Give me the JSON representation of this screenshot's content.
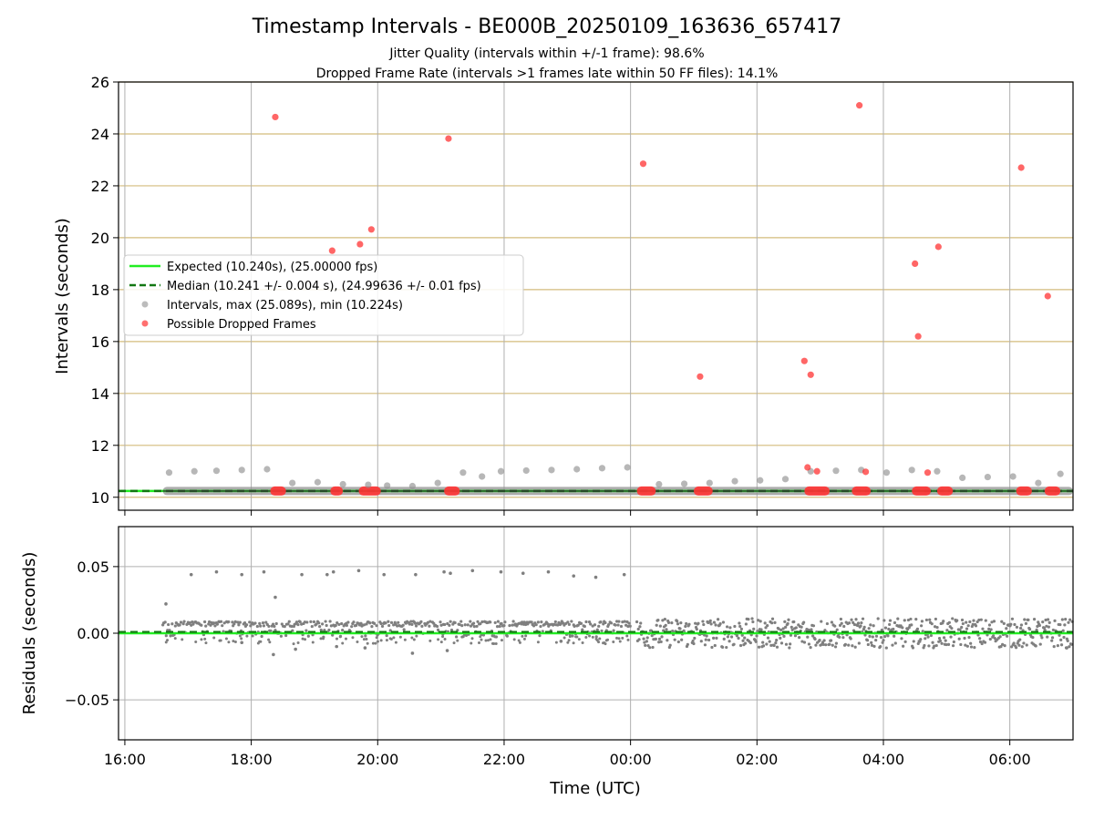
{
  "chart_data": [
    {
      "type": "scatter",
      "title": "Timestamp Intervals - BE000B_20250109_163636_657417",
      "subtitle_lines": [
        "Jitter Quality (intervals within +/-1 frame): 98.6%",
        "Dropped Frame Rate (intervals >1 frames late within 50 FF files): 14.1%"
      ],
      "ylabel": "Intervals (seconds)",
      "xlim_hours": [
        15.9,
        31.0
      ],
      "ylim": [
        9.5,
        26
      ],
      "y_ticks": [
        10,
        12,
        14,
        16,
        18,
        20,
        22,
        24,
        26
      ],
      "y_grid_color": "#d4bc7c",
      "grid": true,
      "legend_placement": "center-left",
      "expected_interval": 10.24,
      "median_interval": 10.241,
      "series": [
        {
          "name": "Expected (10.240s), (25.00000 fps)",
          "style": "solid-line",
          "color": "#22ee22",
          "y": 10.24
        },
        {
          "name": "Median (10.241 +/- 0.004 s), (24.99636 +/- 0.01 fps)",
          "style": "dashed-line",
          "color": "#117711",
          "y": 10.241
        },
        {
          "name": "Intervals, max (25.089s), min (10.224s)",
          "style": "markers",
          "color": "#909090",
          "x_hours": [
            16.7,
            17.1,
            17.45,
            17.85,
            18.25,
            18.65,
            19.05,
            19.45,
            19.85,
            20.15,
            20.55,
            20.95,
            21.35,
            21.65,
            21.95,
            22.35,
            22.75,
            23.15,
            23.55,
            23.95,
            24.45,
            24.85,
            25.25,
            25.65,
            26.05,
            26.45,
            26.85,
            27.25,
            27.65,
            28.05,
            28.45,
            28.85,
            29.25,
            29.65,
            30.05,
            30.45,
            30.8
          ],
          "y": [
            10.95,
            11.0,
            11.02,
            11.05,
            11.08,
            10.55,
            10.58,
            10.5,
            10.48,
            10.45,
            10.43,
            10.55,
            10.95,
            10.8,
            11.0,
            11.03,
            11.05,
            11.08,
            11.12,
            11.15,
            10.5,
            10.52,
            10.55,
            10.62,
            10.65,
            10.7,
            11.0,
            11.02,
            11.05,
            10.95,
            11.05,
            11.0,
            10.75,
            10.78,
            10.8,
            10.55,
            10.9
          ],
          "band_range_hours": [
            16.6,
            31.0
          ],
          "band_y": 10.24
        },
        {
          "name": "Possible Dropped Frames",
          "style": "markers",
          "color": "#ff3333",
          "x_hours": [
            18.38,
            19.28,
            19.72,
            19.9,
            21.12,
            24.2,
            25.1,
            26.75,
            26.8,
            26.85,
            26.95,
            27.62,
            27.72,
            28.5,
            28.55,
            28.7,
            28.87,
            30.18,
            30.6
          ],
          "y": [
            24.65,
            19.5,
            19.75,
            20.32,
            23.82,
            22.85,
            14.65,
            15.25,
            11.15,
            14.72,
            11.0,
            25.1,
            10.98,
            19.0,
            16.2,
            10.95,
            19.65,
            22.7,
            17.75
          ],
          "cluster_ranges_hours": [
            [
              18.3,
              18.55
            ],
            [
              19.25,
              19.45
            ],
            [
              19.7,
              20.05
            ],
            [
              21.05,
              21.3
            ],
            [
              24.1,
              24.4
            ],
            [
              25.0,
              25.3
            ],
            [
              26.75,
              27.15
            ],
            [
              27.5,
              27.8
            ],
            [
              28.45,
              28.75
            ],
            [
              28.85,
              29.1
            ],
            [
              30.1,
              30.35
            ],
            [
              30.55,
              30.8
            ]
          ]
        }
      ]
    },
    {
      "type": "scatter",
      "xlabel": "Time (UTC)",
      "ylabel": "Residuals (seconds)",
      "xlim_hours": [
        15.9,
        31.0
      ],
      "ylim": [
        -0.08,
        0.08
      ],
      "y_ticks": [
        0.05,
        0.0,
        -0.05
      ],
      "y_tick_labels": [
        "0.05",
        "0.00",
        "−0.05"
      ],
      "x_ticks_hours": [
        16,
        18,
        20,
        22,
        24,
        26,
        28,
        30
      ],
      "x_tick_labels": [
        "16:00",
        "18:00",
        "20:00",
        "22:00",
        "00:00",
        "02:00",
        "04:00",
        "06:00"
      ],
      "grid": true,
      "series": [
        {
          "style": "solid-line",
          "color": "#22ee22",
          "y": 0.0
        },
        {
          "style": "dashed-line",
          "color": "#117711",
          "y": 0.001
        },
        {
          "style": "markers",
          "color": "#7f7f7f",
          "outlier_points": [
            [
              16.65,
              0.022
            ],
            [
              17.05,
              0.044
            ],
            [
              17.45,
              0.046
            ],
            [
              17.85,
              0.044
            ],
            [
              18.2,
              0.046
            ],
            [
              18.38,
              0.027
            ],
            [
              18.8,
              0.044
            ],
            [
              19.2,
              0.044
            ],
            [
              19.3,
              0.046
            ],
            [
              19.7,
              0.047
            ],
            [
              20.1,
              0.044
            ],
            [
              20.6,
              0.044
            ],
            [
              21.05,
              0.046
            ],
            [
              21.15,
              0.045
            ],
            [
              21.5,
              0.047
            ],
            [
              21.95,
              0.046
            ],
            [
              22.3,
              0.045
            ],
            [
              22.7,
              0.046
            ],
            [
              23.1,
              0.043
            ],
            [
              23.45,
              0.042
            ],
            [
              23.9,
              0.044
            ],
            [
              18.35,
              -0.016
            ],
            [
              18.7,
              -0.012
            ],
            [
              19.35,
              -0.01
            ],
            [
              19.8,
              -0.011
            ],
            [
              20.55,
              -0.015
            ],
            [
              21.1,
              -0.013
            ],
            [
              17.85,
              -0.007
            ],
            [
              22.9,
              -0.006
            ],
            [
              30.9,
              -0.011
            ]
          ]
        }
      ]
    }
  ]
}
